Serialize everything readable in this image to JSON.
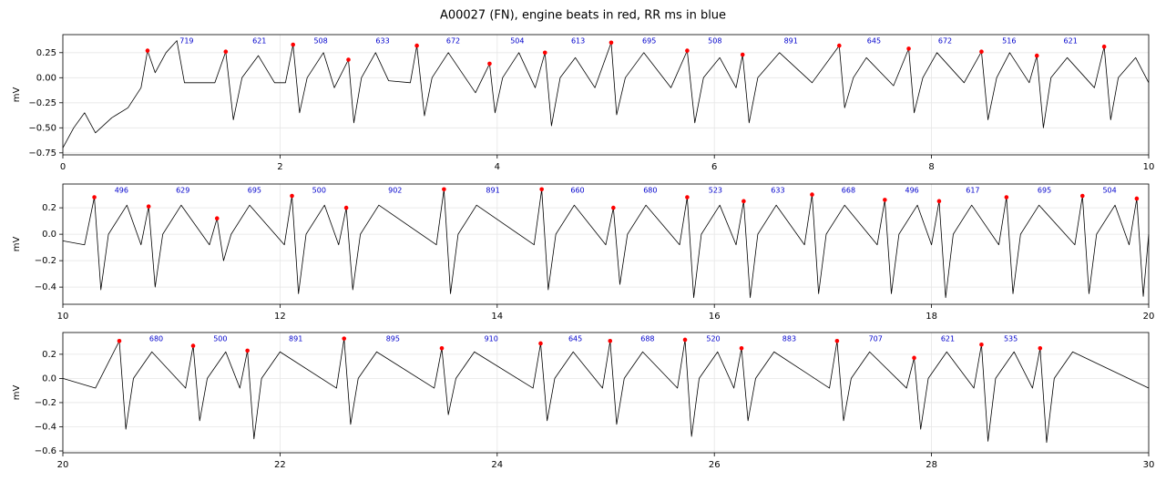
{
  "chart_data": [
    {
      "type": "line",
      "title": "A00027 (FN), engine beats in red, RR ms in blue",
      "ylabel": "mV",
      "grid": true,
      "xlim": [
        0,
        10
      ],
      "ylim": [
        -0.77,
        0.43
      ],
      "xticks": [
        0,
        2,
        4,
        6,
        8,
        10
      ],
      "yticks": [
        {
          "value": -0.75,
          "label": "−0.75"
        },
        {
          "value": -0.5,
          "label": "−0.50"
        },
        {
          "value": -0.25,
          "label": "−0.25"
        },
        {
          "value": 0,
          "label": "0.00"
        },
        0.25
      ],
      "series": [
        {
          "type": "line",
          "color": "#000000",
          "x": [
            0,
            0.1,
            0.2,
            0.3,
            0.45,
            0.6,
            0.72,
            0.78,
            0.85,
            0.95,
            1.05,
            1.12,
            1.2,
            1.4,
            1.5,
            1.57,
            1.65,
            1.8,
            1.95,
            2.05,
            2.12,
            2.18,
            2.25,
            2.4,
            2.5,
            2.63,
            2.68,
            2.75,
            2.88,
            3.0,
            3.2,
            3.26,
            3.33,
            3.4,
            3.55,
            3.8,
            3.93,
            3.98,
            4.05,
            4.2,
            4.35,
            4.44,
            4.5,
            4.58,
            4.72,
            4.9,
            5.05,
            5.1,
            5.18,
            5.35,
            5.6,
            5.75,
            5.82,
            5.9,
            6.05,
            6.2,
            6.26,
            6.32,
            6.4,
            6.6,
            6.9,
            7.15,
            7.2,
            7.28,
            7.4,
            7.65,
            7.79,
            7.84,
            7.92,
            8.05,
            8.3,
            8.46,
            8.52,
            8.6,
            8.72,
            8.9,
            8.97,
            9.03,
            9.1,
            9.25,
            9.5,
            9.59,
            9.65,
            9.72,
            9.88,
            10
          ],
          "values": [
            -0.7,
            -0.5,
            -0.35,
            -0.55,
            -0.4,
            -0.3,
            -0.1,
            0.27,
            0.05,
            0.25,
            0.37,
            -0.05,
            -0.05,
            -0.05,
            0.26,
            -0.42,
            0.0,
            0.22,
            -0.05,
            -0.05,
            0.33,
            -0.35,
            0.0,
            0.25,
            -0.1,
            0.18,
            -0.45,
            0.0,
            0.25,
            -0.03,
            -0.05,
            0.32,
            -0.38,
            0.0,
            0.25,
            -0.15,
            0.14,
            -0.35,
            0.0,
            0.25,
            -0.1,
            0.25,
            -0.48,
            0.0,
            0.2,
            -0.1,
            0.35,
            -0.37,
            0.0,
            0.25,
            -0.1,
            0.27,
            -0.45,
            0.0,
            0.2,
            -0.1,
            0.23,
            -0.45,
            0.0,
            0.25,
            -0.05,
            0.32,
            -0.3,
            0.0,
            0.2,
            -0.08,
            0.29,
            -0.35,
            0.0,
            0.25,
            -0.05,
            0.26,
            -0.42,
            0.0,
            0.25,
            -0.05,
            0.22,
            -0.5,
            0.0,
            0.2,
            -0.1,
            0.31,
            -0.42,
            0.0,
            0.2,
            -0.05
          ]
        },
        {
          "type": "scatter",
          "color": "#ff0000",
          "x": [
            0.78,
            1.5,
            2.12,
            2.63,
            3.26,
            3.93,
            4.44,
            5.05,
            5.75,
            6.26,
            7.15,
            7.79,
            8.46,
            8.97,
            9.59
          ],
          "values": [
            0.27,
            0.26,
            0.33,
            0.18,
            0.32,
            0.14,
            0.25,
            0.35,
            0.27,
            0.23,
            0.32,
            0.29,
            0.26,
            0.22,
            0.31
          ]
        }
      ],
      "annotation_color": "#0000cc",
      "annotations": [
        719,
        621,
        508,
        633,
        672,
        504,
        613,
        695,
        508,
        891,
        645,
        672,
        516,
        621
      ]
    },
    {
      "type": "line",
      "ylabel": "mV",
      "grid": true,
      "xlim": [
        10,
        20
      ],
      "ylim": [
        -0.53,
        0.38
      ],
      "xticks": [
        10,
        12,
        14,
        16,
        18,
        20
      ],
      "yticks": [
        {
          "value": -0.4,
          "label": "−0.4"
        },
        {
          "value": -0.2,
          "label": "−0.2"
        },
        {
          "value": 0,
          "label": "0.0"
        },
        0.2
      ],
      "series": [
        {
          "type": "line",
          "color": "#000000",
          "x": [
            10,
            10.2,
            10.29,
            10.35,
            10.42,
            10.59,
            10.72,
            10.79,
            10.85,
            10.92,
            11.09,
            11.35,
            11.42,
            11.48,
            11.55,
            11.72,
            12.04,
            12.11,
            12.17,
            12.24,
            12.41,
            12.54,
            12.61,
            12.67,
            12.74,
            12.91,
            13.44,
            13.51,
            13.57,
            13.64,
            13.81,
            14.34,
            14.41,
            14.47,
            14.54,
            14.71,
            15.0,
            15.07,
            15.13,
            15.2,
            15.37,
            15.68,
            15.75,
            15.81,
            15.88,
            16.05,
            16.2,
            16.27,
            16.33,
            16.4,
            16.57,
            16.83,
            16.9,
            16.96,
            17.03,
            17.2,
            17.5,
            17.57,
            17.63,
            17.7,
            17.87,
            18.0,
            18.07,
            18.13,
            18.2,
            18.37,
            18.62,
            18.69,
            18.75,
            18.82,
            18.99,
            19.32,
            19.39,
            19.45,
            19.52,
            19.69,
            19.82,
            19.89,
            19.95,
            20
          ],
          "values": [
            -0.05,
            -0.08,
            0.28,
            -0.42,
            0.0,
            0.22,
            -0.08,
            0.21,
            -0.4,
            0.0,
            0.22,
            -0.08,
            0.12,
            -0.2,
            0.0,
            0.22,
            -0.08,
            0.29,
            -0.45,
            0.0,
            0.22,
            -0.08,
            0.2,
            -0.42,
            0.0,
            0.22,
            -0.08,
            0.34,
            -0.45,
            0.0,
            0.22,
            -0.08,
            0.34,
            -0.42,
            0.0,
            0.22,
            -0.08,
            0.2,
            -0.38,
            0.0,
            0.22,
            -0.08,
            0.28,
            -0.48,
            0.0,
            0.22,
            -0.08,
            0.25,
            -0.48,
            0.0,
            0.22,
            -0.08,
            0.3,
            -0.45,
            0.0,
            0.22,
            -0.08,
            0.26,
            -0.45,
            0.0,
            0.22,
            -0.08,
            0.25,
            -0.48,
            0.0,
            0.22,
            -0.08,
            0.28,
            -0.45,
            0.0,
            0.22,
            -0.08,
            0.29,
            -0.45,
            0.0,
            0.22,
            -0.08,
            0.27,
            -0.47,
            0.0
          ]
        },
        {
          "type": "scatter",
          "color": "#ff0000",
          "x": [
            10.29,
            10.79,
            11.42,
            12.11,
            12.61,
            13.51,
            14.41,
            15.07,
            15.75,
            16.27,
            16.9,
            17.57,
            18.07,
            18.69,
            19.39,
            19.89
          ],
          "values": [
            0.28,
            0.21,
            0.12,
            0.29,
            0.2,
            0.34,
            0.34,
            0.2,
            0.28,
            0.25,
            0.3,
            0.26,
            0.25,
            0.28,
            0.29,
            0.27
          ]
        }
      ],
      "annotation_color": "#0000cc",
      "annotations": [
        496,
        629,
        695,
        500,
        902,
        891,
        660,
        680,
        523,
        633,
        668,
        496,
        617,
        695,
        504
      ]
    },
    {
      "type": "line",
      "ylabel": "mV",
      "grid": true,
      "xlim": [
        20,
        30
      ],
      "ylim": [
        -0.615,
        0.38
      ],
      "xticks": [
        20,
        22,
        24,
        26,
        28,
        30
      ],
      "yticks": [
        {
          "value": -0.6,
          "label": "−0.6"
        },
        {
          "value": -0.4,
          "label": "−0.4"
        },
        {
          "value": -0.2,
          "label": "−0.2"
        },
        {
          "value": 0,
          "label": "0.0"
        },
        0.2
      ],
      "series": [
        {
          "type": "line",
          "color": "#000000",
          "x": [
            20,
            20.3,
            20.52,
            20.58,
            20.65,
            20.82,
            21.13,
            21.2,
            21.26,
            21.33,
            21.5,
            21.63,
            21.7,
            21.76,
            21.83,
            22.0,
            22.52,
            22.59,
            22.65,
            22.72,
            22.89,
            23.42,
            23.49,
            23.55,
            23.62,
            23.79,
            24.33,
            24.4,
            24.46,
            24.53,
            24.7,
            24.97,
            25.04,
            25.1,
            25.17,
            25.34,
            25.66,
            25.73,
            25.79,
            25.86,
            26.03,
            26.18,
            26.25,
            26.31,
            26.38,
            26.55,
            27.06,
            27.13,
            27.19,
            27.26,
            27.43,
            27.77,
            27.84,
            27.9,
            27.97,
            28.14,
            28.39,
            28.46,
            28.52,
            28.59,
            28.76,
            28.93,
            29.0,
            29.06,
            29.13,
            29.3,
            30
          ],
          "values": [
            0.0,
            -0.08,
            0.31,
            -0.42,
            0.0,
            0.22,
            -0.08,
            0.27,
            -0.35,
            0.0,
            0.22,
            -0.08,
            0.23,
            -0.5,
            0.0,
            0.22,
            -0.08,
            0.33,
            -0.38,
            0.0,
            0.22,
            -0.08,
            0.25,
            -0.3,
            0.0,
            0.22,
            -0.08,
            0.29,
            -0.35,
            0.0,
            0.22,
            -0.08,
            0.31,
            -0.38,
            0.0,
            0.22,
            -0.08,
            0.32,
            -0.48,
            0.0,
            0.22,
            -0.08,
            0.25,
            -0.35,
            0.0,
            0.22,
            -0.08,
            0.31,
            -0.35,
            0.0,
            0.22,
            -0.08,
            0.17,
            -0.42,
            0.0,
            0.22,
            -0.08,
            0.28,
            -0.52,
            0.0,
            0.22,
            -0.08,
            0.25,
            -0.53,
            0.0,
            0.22,
            -0.08
          ]
        },
        {
          "type": "scatter",
          "color": "#ff0000",
          "x": [
            20.52,
            21.2,
            21.7,
            22.59,
            23.49,
            24.4,
            25.04,
            25.73,
            26.25,
            27.13,
            27.84,
            28.46,
            29.0
          ],
          "values": [
            0.31,
            0.27,
            0.23,
            0.33,
            0.25,
            0.29,
            0.31,
            0.32,
            0.25,
            0.31,
            0.17,
            0.28,
            0.25
          ]
        }
      ],
      "annotation_color": "#0000cc",
      "annotations": [
        680,
        500,
        891,
        895,
        910,
        645,
        688,
        520,
        883,
        707,
        621,
        535
      ]
    }
  ]
}
